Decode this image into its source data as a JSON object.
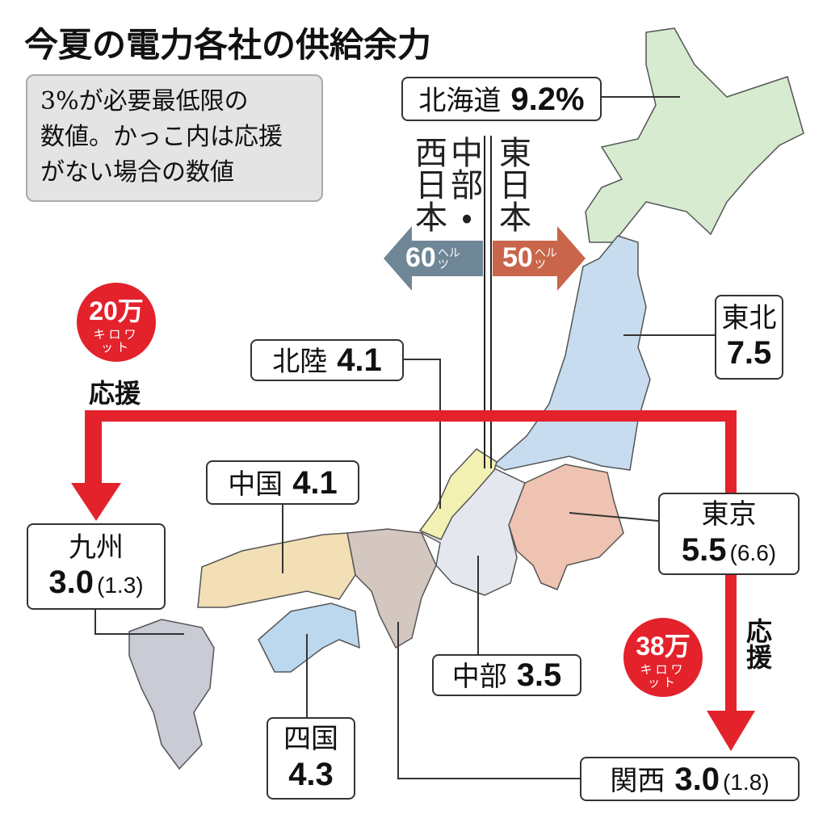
{
  "title": "今夏の電力各社の供給余力",
  "note": [
    "3%が必要最低限の",
    "数値。かっこ内は応援",
    "がない場合の数値"
  ],
  "divide": {
    "west": "中部・西日本",
    "east": "東日本",
    "west_hz": {
      "value": "60",
      "unit": "ヘルツ"
    },
    "east_hz": {
      "value": "50",
      "unit": "ヘルツ"
    }
  },
  "support": [
    {
      "amount": "20万",
      "unit": "キロワット",
      "label": "応援"
    },
    {
      "amount": "38万",
      "unit": "キロワット",
      "label": "応援"
    }
  ],
  "regions": [
    {
      "name": "北海道",
      "value": "9.2%"
    },
    {
      "name": "東北",
      "value": "7.5"
    },
    {
      "name": "北陸",
      "value": "4.1"
    },
    {
      "name": "中国",
      "value": "4.1"
    },
    {
      "name": "九州",
      "value": "3.0",
      "without_support": "(1.3)"
    },
    {
      "name": "東京",
      "value": "5.5",
      "without_support": "(6.6)"
    },
    {
      "name": "中部",
      "value": "3.5"
    },
    {
      "name": "四国",
      "value": "4.3"
    },
    {
      "name": "関西",
      "value": "3.0",
      "without_support": "(1.8)"
    }
  ]
}
